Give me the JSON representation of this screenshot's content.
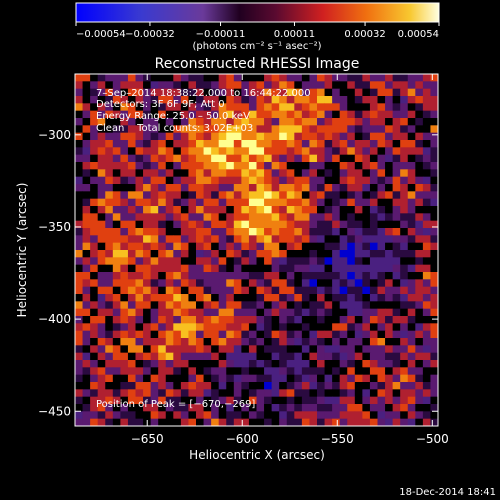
{
  "chart_data": {
    "type": "heatmap",
    "title": "Reconstructed RHESSI Image",
    "xlabel": "Heliocentric X (arcsec)",
    "ylabel": "Heliocentric Y (arcsec)",
    "xlim": [
      -688,
      -497
    ],
    "ylim": [
      -458,
      -267
    ],
    "xticks": [
      -650,
      -600,
      -550,
      -500
    ],
    "xtick_labels": [
      "−650",
      "−600",
      "−550",
      "−500"
    ],
    "yticks": [
      -300,
      -350,
      -400,
      -450
    ],
    "ytick_labels": [
      "−300",
      "−350",
      "−400",
      "−450"
    ],
    "colorbar": {
      "range": [
        -0.00054,
        0.00054
      ],
      "tick_labels": [
        "−0.00054",
        "−0.00032",
        "−0.00011",
        "0.00011",
        "0.00032",
        "0.00054"
      ],
      "units_label": "(photons cm⁻² s⁻¹ asec⁻²)"
    },
    "colors": [
      "#0000d0",
      "#4a2080",
      "#2a0a40",
      "#000000",
      "#5a1a70",
      "#b02030",
      "#e04010",
      "#f08010",
      "#f8c020",
      "#ffff90"
    ],
    "peak": {
      "x": -670,
      "y": -269
    },
    "annotations": [
      "7–Sep–2014 18:38:22.000 to 16:44:22.000",
      "Detectors: 3F 6F 9F; Att 0",
      "Energy Range: 25.0 – 50.0 keV",
      "Clean    Total counts: 3.02E+03"
    ],
    "peak_label": "Position of Peak = [−670,−269]"
  },
  "footer": {
    "timestamp": "18-Dec-2014 18:41"
  }
}
